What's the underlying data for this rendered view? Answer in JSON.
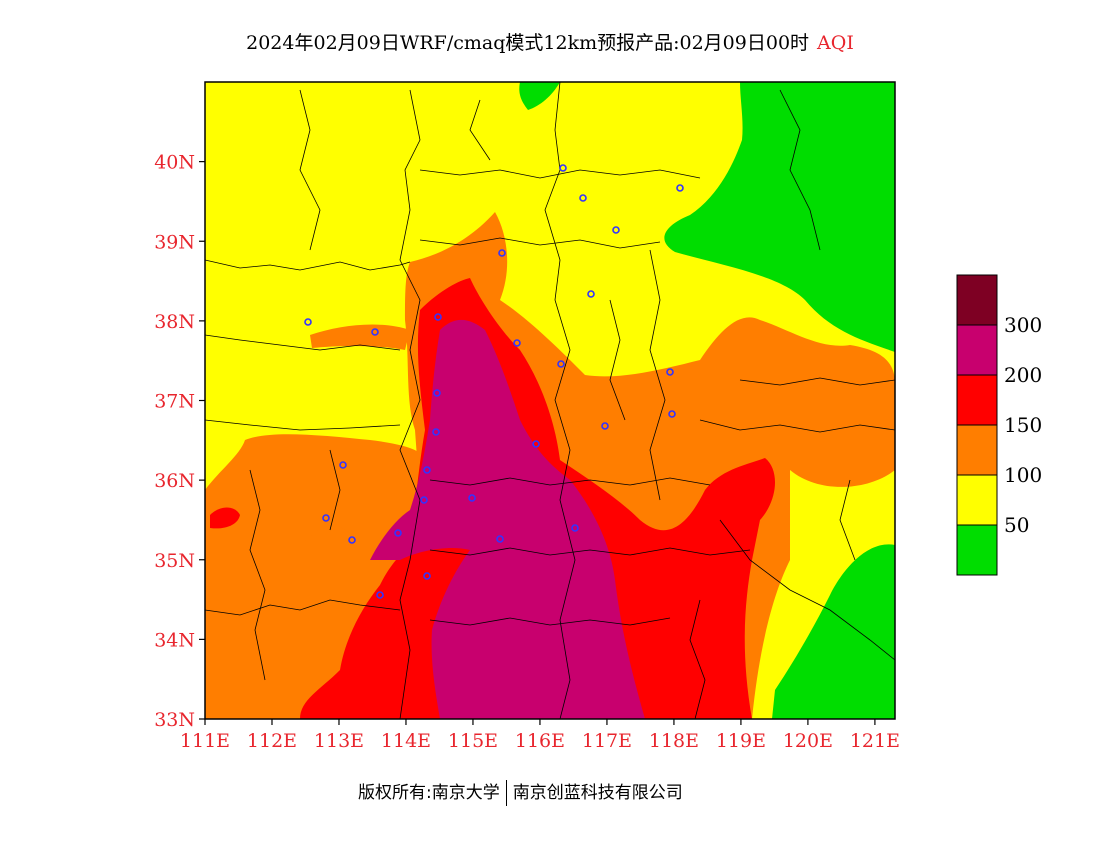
{
  "title": {
    "text": "2024年02月09日WRF/cmaq模式12km预报产品:02月09日00时",
    "product": "AQI"
  },
  "axes": {
    "lat_labels": [
      "33N",
      "34N",
      "35N",
      "36N",
      "37N",
      "38N",
      "39N",
      "40N"
    ],
    "lon_labels": [
      "111E",
      "112E",
      "113E",
      "114E",
      "115E",
      "116E",
      "117E",
      "118E",
      "119E",
      "120E",
      "121E"
    ],
    "lat_range": [
      33,
      41
    ],
    "lon_range": [
      111,
      121.3
    ]
  },
  "legend": {
    "entries": [
      {
        "color": "#00dd00",
        "label": "50"
      },
      {
        "color": "#ffff00",
        "label": "100"
      },
      {
        "color": "#ff7e00",
        "label": "150"
      },
      {
        "color": "#ff0000",
        "label": "200"
      },
      {
        "color": "#c8006e",
        "label": "300"
      },
      {
        "color": "#7e0023",
        "label": ""
      }
    ]
  },
  "footer": {
    "copyright": "版权所有:南京大学",
    "company": "南京创蓝科技有限公司"
  }
}
